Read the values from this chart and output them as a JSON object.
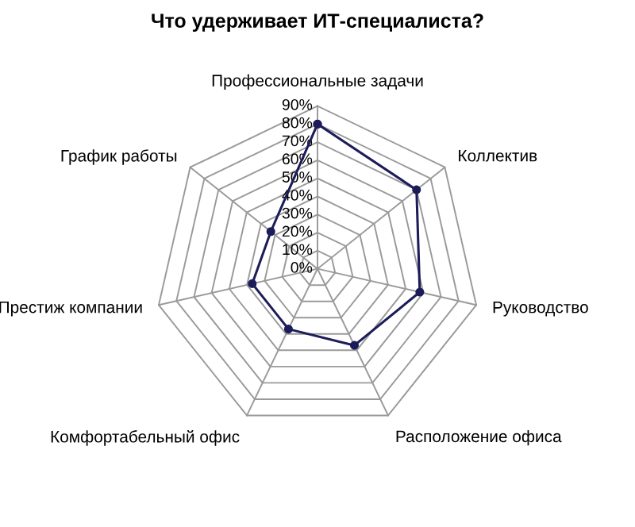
{
  "chart_data": {
    "type": "radar",
    "title": "Что удерживает ИТ-специалиста?",
    "categories": [
      "Профессиональные задачи",
      "Коллектив",
      "Руководство",
      "Расположение офиса",
      "Комфортабельный офис",
      "Престиж компании",
      "График работы"
    ],
    "series": [
      {
        "color": "#1c1c5a",
        "values": [
          80,
          70,
          58,
          47,
          37,
          37,
          33
        ]
      }
    ],
    "ylim": [
      0,
      90
    ],
    "yticks": [
      {
        "value": 0,
        "label": "0%"
      },
      {
        "value": 10,
        "label": "10%"
      },
      {
        "value": 20,
        "label": "20%"
      },
      {
        "value": 30,
        "label": "30%"
      },
      {
        "value": 40,
        "label": "40%"
      },
      {
        "value": 50,
        "label": "50%"
      },
      {
        "value": 60,
        "label": "60%"
      },
      {
        "value": 70,
        "label": "70%"
      },
      {
        "value": 80,
        "label": "80%"
      },
      {
        "value": 90,
        "label": "90%"
      }
    ],
    "grid": true,
    "marker": "circle"
  }
}
